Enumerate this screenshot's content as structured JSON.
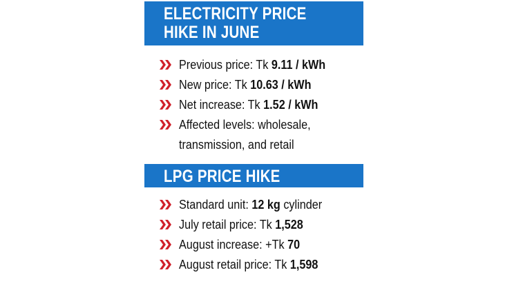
{
  "sections": [
    {
      "title": [
        "ELECTRICITY PRICE",
        "HIKE IN JUNE"
      ],
      "items": [
        {
          "label": "Previous price: Tk",
          "value": "9.11 / kWh"
        },
        {
          "label": "New price: Tk",
          "value": "10.63 / kWh"
        },
        {
          "label": "Net increase: Tk",
          "value": "1.52 / kWh"
        },
        {
          "label": "Affected levels: wholesale,",
          "continuation": "transmission, and retail"
        }
      ]
    },
    {
      "title": [
        "LPG PRICE HIKE"
      ],
      "items": [
        {
          "label": "Standard unit:",
          "value": "12 kg",
          "suffix": "cylinder"
        },
        {
          "label": "July retail price: Tk",
          "value": "1,528"
        },
        {
          "label": "August increase: +Tk",
          "value": "70"
        },
        {
          "label": "August retail price: Tk",
          "value": "1,598"
        }
      ]
    }
  ]
}
